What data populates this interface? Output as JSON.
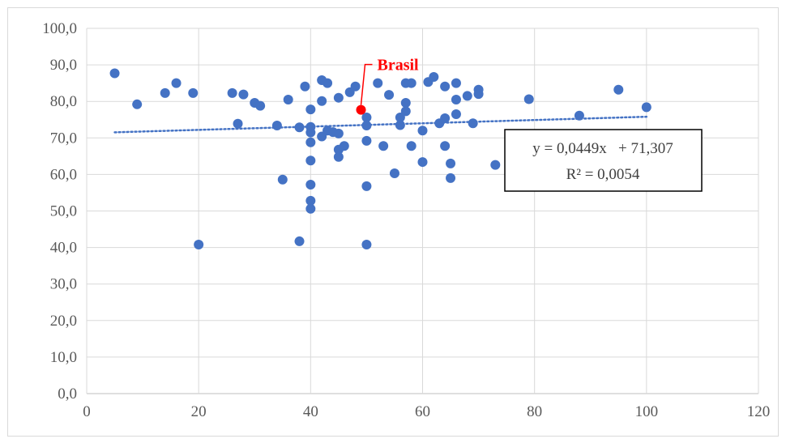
{
  "chart_data": {
    "type": "scatter",
    "title": "",
    "xlabel": "",
    "ylabel": "",
    "xlim": [
      0,
      120
    ],
    "ylim": [
      0,
      100
    ],
    "grid": true,
    "x_ticks": [
      0,
      20,
      40,
      60,
      80,
      100,
      120
    ],
    "x_tick_labels": [
      "0",
      "20",
      "40",
      "60",
      "80",
      "100",
      "120"
    ],
    "y_ticks": [
      0,
      10,
      20,
      30,
      40,
      50,
      60,
      70,
      80,
      90,
      100
    ],
    "y_tick_labels": [
      "0,0",
      "10,0",
      "20,0",
      "30,0",
      "40,0",
      "50,0",
      "60,0",
      "70,0",
      "80,0",
      "90,0",
      "100,0"
    ],
    "colors": {
      "points": "#4472c4",
      "highlight": "#ff0000",
      "trendline": "#4472c4",
      "grid": "#d9d9d9",
      "axis_text": "#595959"
    },
    "series": [
      {
        "points": [
          [
            5,
            87.7
          ],
          [
            9,
            79.2
          ],
          [
            14,
            82.3
          ],
          [
            16,
            85.0
          ],
          [
            19,
            82.3
          ],
          [
            20,
            40.8
          ],
          [
            26,
            82.3
          ],
          [
            27,
            73.9
          ],
          [
            28,
            81.9
          ],
          [
            30,
            79.6
          ],
          [
            31,
            78.8
          ],
          [
            34,
            73.4
          ],
          [
            35,
            58.6
          ],
          [
            36,
            80.5
          ],
          [
            38,
            72.9
          ],
          [
            38,
            41.7
          ],
          [
            39,
            84.1
          ],
          [
            40,
            77.8
          ],
          [
            40,
            73.0
          ],
          [
            40,
            71.5
          ],
          [
            40,
            68.8
          ],
          [
            40,
            63.8
          ],
          [
            40,
            57.2
          ],
          [
            40,
            52.8
          ],
          [
            40,
            50.6
          ],
          [
            42,
            85.8
          ],
          [
            42,
            80.1
          ],
          [
            42,
            70.4
          ],
          [
            43,
            85.0
          ],
          [
            43,
            72.0
          ],
          [
            44,
            71.6
          ],
          [
            45,
            81.0
          ],
          [
            45,
            71.2
          ],
          [
            45,
            66.8
          ],
          [
            45,
            64.8
          ],
          [
            46,
            67.8
          ],
          [
            47,
            82.5
          ],
          [
            48,
            84.1
          ],
          [
            50,
            75.6
          ],
          [
            50,
            73.4
          ],
          [
            50,
            69.2
          ],
          [
            50,
            56.8
          ],
          [
            50,
            40.8
          ],
          [
            52,
            85.0
          ],
          [
            53,
            67.8
          ],
          [
            54,
            81.8
          ],
          [
            55,
            60.3
          ],
          [
            56,
            75.6
          ],
          [
            56,
            73.5
          ],
          [
            57,
            85.0
          ],
          [
            57,
            79.6
          ],
          [
            57,
            77.3
          ],
          [
            58,
            85.0
          ],
          [
            58,
            67.8
          ],
          [
            60,
            72.0
          ],
          [
            60,
            63.4
          ],
          [
            61,
            85.3
          ],
          [
            62,
            86.7
          ],
          [
            63,
            74.0
          ],
          [
            64,
            84.1
          ],
          [
            64,
            75.4
          ],
          [
            64,
            67.8
          ],
          [
            65,
            63.0
          ],
          [
            65,
            59.0
          ],
          [
            66,
            85.0
          ],
          [
            66,
            80.5
          ],
          [
            66,
            76.5
          ],
          [
            68,
            81.5
          ],
          [
            69,
            74.0
          ],
          [
            70,
            83.2
          ],
          [
            70,
            82.0
          ],
          [
            73,
            62.6
          ],
          [
            79,
            80.6
          ],
          [
            88,
            76.1
          ],
          [
            95,
            83.2
          ],
          [
            100,
            78.4
          ]
        ]
      }
    ],
    "highlight": {
      "label": "Brasil",
      "x": 49,
      "y": 77.7
    },
    "trendline": {
      "type": "linear",
      "slope": 0.0449,
      "intercept": 71.307,
      "x_range": [
        5,
        100
      ],
      "equation": "y = 0,0449x   + 71,307",
      "r_squared": "R² = 0,0054"
    }
  }
}
